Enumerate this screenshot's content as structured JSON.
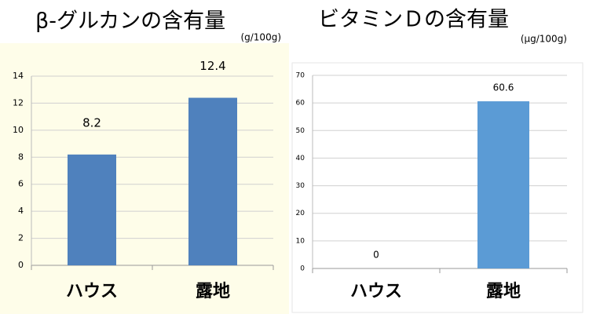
{
  "chart_data": [
    {
      "type": "bar",
      "title": "β-グルカンの含有量",
      "subtitle": "(g/100g)",
      "categories": [
        "ハウス",
        "露地"
      ],
      "values": [
        8.2,
        12.4
      ],
      "color": "#4f81bd",
      "ylim": [
        0,
        14
      ],
      "yticks": [
        0,
        2,
        4,
        6,
        8,
        10,
        12,
        14
      ],
      "grid": true
    },
    {
      "type": "bar",
      "title": "ビタミンＤの含有量",
      "subtitle": "(µg/100g)",
      "categories": [
        "ハウス",
        "露地"
      ],
      "values": [
        0,
        60.6
      ],
      "color": "#5b9bd5",
      "ylim": [
        0,
        70
      ],
      "yticks": [
        0,
        10,
        20,
        30,
        40,
        50,
        60,
        70
      ],
      "grid": true
    }
  ]
}
